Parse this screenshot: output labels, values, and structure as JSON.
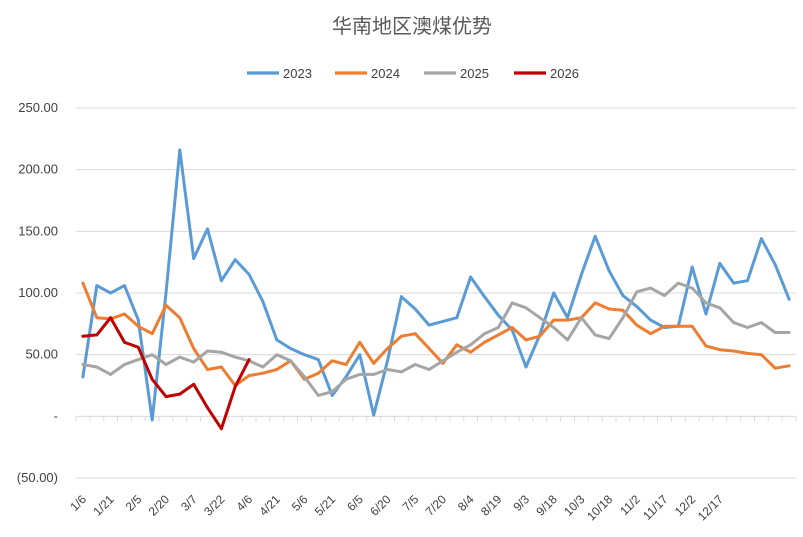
{
  "chart_data": {
    "type": "line",
    "title": "华南地区澳煤优势",
    "xlabel": "",
    "ylabel": "",
    "ylim": [
      -50,
      250
    ],
    "y_ticks": [
      {
        "value": 250,
        "label": "250.00"
      },
      {
        "value": 200,
        "label": "200.00"
      },
      {
        "value": 150,
        "label": "150.00"
      },
      {
        "value": 100,
        "label": "100.00"
      },
      {
        "value": 50,
        "label": "50.00"
      },
      {
        "value": 0,
        "label": "-"
      },
      {
        "value": -50,
        "label": "(50.00)"
      }
    ],
    "x_tick_labels": [
      "1/6",
      "1/21",
      "2/5",
      "2/20",
      "3/7",
      "3/22",
      "4/6",
      "4/21",
      "5/6",
      "5/21",
      "6/5",
      "6/20",
      "7/5",
      "7/20",
      "8/4",
      "8/19",
      "9/3",
      "9/18",
      "10/3",
      "10/18",
      "11/2",
      "11/17",
      "12/2",
      "12/17"
    ],
    "grid": true,
    "legend_position": "top",
    "series": [
      {
        "name": "2023",
        "color": "#5b9bd5",
        "values": [
          32,
          106,
          100,
          106,
          78,
          -3,
          100,
          216,
          128,
          152,
          110,
          127,
          115,
          93,
          62,
          55,
          50,
          46,
          17,
          32,
          50,
          1,
          45,
          97,
          87,
          74,
          77,
          80,
          113,
          97,
          82,
          70,
          40,
          66,
          100,
          80,
          115,
          146,
          118,
          98,
          89,
          78,
          72,
          73,
          121,
          83,
          124,
          108,
          110,
          144,
          123,
          95
        ]
      },
      {
        "name": "2024",
        "color": "#ed7d31",
        "values": [
          108,
          80,
          79,
          83,
          73,
          67,
          90,
          80,
          55,
          38,
          40,
          25,
          33,
          35,
          38,
          45,
          30,
          35,
          45,
          42,
          60,
          43,
          55,
          65,
          67,
          55,
          43,
          58,
          52,
          60,
          66,
          72,
          62,
          65,
          78,
          78,
          80,
          92,
          87,
          86,
          74,
          67,
          73,
          73,
          73,
          57,
          54,
          53,
          51,
          50,
          39,
          41
        ]
      },
      {
        "name": "2025",
        "color": "#a5a5a5",
        "values": [
          42,
          40,
          34,
          42,
          46,
          50,
          42,
          48,
          44,
          53,
          52,
          48,
          45,
          40,
          50,
          45,
          32,
          17,
          20,
          30,
          34,
          34,
          38,
          36,
          42,
          38,
          45,
          52,
          58,
          67,
          72,
          92,
          88,
          80,
          72,
          62,
          80,
          66,
          63,
          80,
          101,
          104,
          98,
          108,
          104,
          92,
          88,
          76,
          72,
          76,
          68,
          68
        ]
      },
      {
        "name": "2026",
        "color": "#c00000",
        "values": [
          65,
          66,
          80,
          60,
          56,
          30,
          16,
          18,
          26,
          7,
          -10,
          24,
          46
        ]
      }
    ]
  }
}
